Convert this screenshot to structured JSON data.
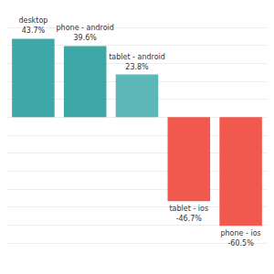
{
  "chart_data": {
    "type": "bar",
    "categories": [
      "desktop",
      "phone - android",
      "tablet - android",
      "tablet - ios",
      "phone - ios"
    ],
    "values": [
      43.7,
      39.6,
      23.8,
      -46.7,
      -60.5
    ],
    "value_labels": [
      "43.7%",
      "39.6%",
      "23.8%",
      "-46.7%",
      "-60.5%"
    ],
    "colors": [
      "#3ea8a8",
      "#3ea8a8",
      "#5db7b7",
      "#f2594e",
      "#f2594e"
    ],
    "ylim": [
      -70,
      50
    ],
    "yticks": [
      -70,
      -60,
      -50,
      -40,
      -30,
      -20,
      -10,
      0,
      10,
      20,
      30,
      40,
      50
    ],
    "grid": true,
    "data_labels": true,
    "tick_labels": false
  }
}
